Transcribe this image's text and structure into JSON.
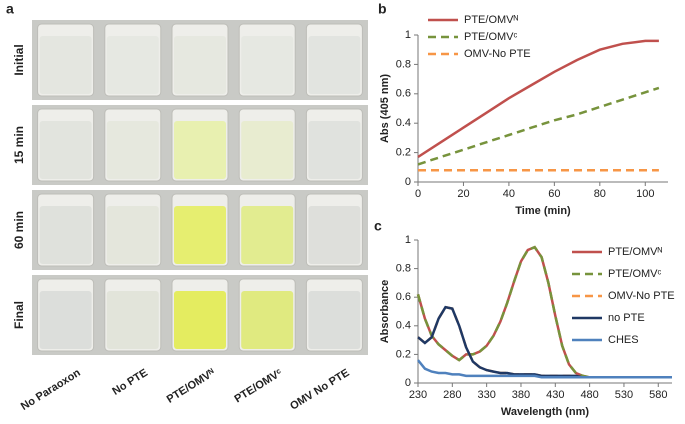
{
  "photo": {
    "label": "a",
    "rows": [
      "Initial",
      "15 min",
      "60 min",
      "Final"
    ],
    "columns": [
      "No Paraoxon",
      "No PTE",
      "PTE/OMVᴺ",
      "PTE/OMVᶜ",
      "OMV No PTE"
    ]
  },
  "chart_data": [
    {
      "type": "line",
      "panel_label": "b",
      "xlabel": "Time (min)",
      "ylabel": "Abs (405 nm)",
      "x": [
        0,
        10,
        20,
        30,
        40,
        50,
        60,
        70,
        80,
        90,
        100,
        106
      ],
      "xlim": [
        0,
        110
      ],
      "xticks": [
        0,
        20,
        40,
        60,
        80,
        100
      ],
      "ylim": [
        0,
        1
      ],
      "yticks": [
        0,
        0.2,
        0.4,
        0.6,
        0.8,
        1
      ],
      "legend": "upper left",
      "series": [
        {
          "name": "PTE/OMVᴺ",
          "color": "#c0504d",
          "style": "solid",
          "values": [
            0.17,
            0.27,
            0.37,
            0.47,
            0.57,
            0.66,
            0.75,
            0.83,
            0.9,
            0.94,
            0.96,
            0.96
          ]
        },
        {
          "name": "PTE/OMVᶜ",
          "color": "#77933c",
          "style": "dashed",
          "values": [
            0.12,
            0.17,
            0.22,
            0.27,
            0.32,
            0.37,
            0.42,
            0.46,
            0.51,
            0.56,
            0.61,
            0.64
          ]
        },
        {
          "name": "OMV-No PTE",
          "color": "#f79646",
          "style": "dashed",
          "values": [
            0.08,
            0.08,
            0.08,
            0.08,
            0.08,
            0.08,
            0.08,
            0.08,
            0.08,
            0.08,
            0.08,
            0.08
          ]
        }
      ]
    },
    {
      "type": "line",
      "panel_label": "c",
      "xlabel": "Wavelength (nm)",
      "ylabel": "Absorbance",
      "x": [
        230,
        240,
        250,
        260,
        270,
        280,
        290,
        300,
        310,
        320,
        330,
        340,
        350,
        360,
        370,
        380,
        390,
        400,
        410,
        420,
        430,
        440,
        450,
        460,
        470,
        480,
        490,
        500,
        510,
        520,
        530,
        540,
        550,
        560,
        570,
        580,
        590,
        600
      ],
      "xlim": [
        230,
        600
      ],
      "xticks": [
        230,
        280,
        330,
        380,
        430,
        480,
        530,
        580
      ],
      "ylim": [
        0,
        1
      ],
      "yticks": [
        0,
        0.2,
        0.4,
        0.6,
        0.8,
        1
      ],
      "legend": "right",
      "series": [
        {
          "name": "PTE/OMVᴺ",
          "color": "#c0504d",
          "style": "solid",
          "values": [
            0.62,
            0.45,
            0.33,
            0.27,
            0.23,
            0.19,
            0.16,
            0.2,
            0.2,
            0.22,
            0.26,
            0.33,
            0.43,
            0.56,
            0.71,
            0.85,
            0.93,
            0.95,
            0.88,
            0.7,
            0.47,
            0.26,
            0.13,
            0.07,
            0.05,
            0.04,
            0.04,
            0.04,
            0.04,
            0.04,
            0.04,
            0.04,
            0.04,
            0.04,
            0.04,
            0.04,
            0.04,
            0.04
          ]
        },
        {
          "name": "PTE/OMVᶜ",
          "color": "#77933c",
          "style": "dashed",
          "values": [
            0.62,
            0.45,
            0.33,
            0.27,
            0.23,
            0.19,
            0.16,
            0.2,
            0.2,
            0.22,
            0.26,
            0.33,
            0.43,
            0.56,
            0.71,
            0.85,
            0.93,
            0.95,
            0.88,
            0.7,
            0.47,
            0.26,
            0.13,
            0.07,
            0.05,
            0.04,
            0.04,
            0.04,
            0.04,
            0.04,
            0.04,
            0.04,
            0.04,
            0.04,
            0.04,
            0.04,
            0.04,
            0.04
          ]
        },
        {
          "name": "OMV-No PTE",
          "color": "#f79646",
          "style": "dashed",
          "values": [
            0.32,
            0.28,
            0.32,
            0.45,
            0.53,
            0.52,
            0.4,
            0.25,
            0.15,
            0.11,
            0.09,
            0.08,
            0.07,
            0.07,
            0.06,
            0.06,
            0.06,
            0.06,
            0.05,
            0.05,
            0.05,
            0.05,
            0.05,
            0.05,
            0.04,
            0.04,
            0.04,
            0.04,
            0.04,
            0.04,
            0.04,
            0.04,
            0.04,
            0.04,
            0.04,
            0.04,
            0.04,
            0.04
          ]
        },
        {
          "name": "no PTE",
          "color": "#1f3864",
          "style": "solid",
          "values": [
            0.32,
            0.28,
            0.32,
            0.45,
            0.53,
            0.52,
            0.4,
            0.25,
            0.15,
            0.11,
            0.09,
            0.08,
            0.07,
            0.07,
            0.06,
            0.06,
            0.06,
            0.06,
            0.05,
            0.05,
            0.05,
            0.05,
            0.05,
            0.05,
            0.04,
            0.04,
            0.04,
            0.04,
            0.04,
            0.04,
            0.04,
            0.04,
            0.04,
            0.04,
            0.04,
            0.04,
            0.04,
            0.04
          ]
        },
        {
          "name": "CHES",
          "color": "#4f81bd",
          "style": "solid",
          "values": [
            0.16,
            0.1,
            0.08,
            0.07,
            0.07,
            0.06,
            0.06,
            0.05,
            0.05,
            0.05,
            0.05,
            0.05,
            0.05,
            0.05,
            0.05,
            0.05,
            0.05,
            0.05,
            0.04,
            0.04,
            0.04,
            0.04,
            0.04,
            0.04,
            0.04,
            0.04,
            0.04,
            0.04,
            0.04,
            0.04,
            0.04,
            0.04,
            0.04,
            0.04,
            0.04,
            0.04,
            0.04,
            0.04
          ]
        }
      ]
    }
  ]
}
